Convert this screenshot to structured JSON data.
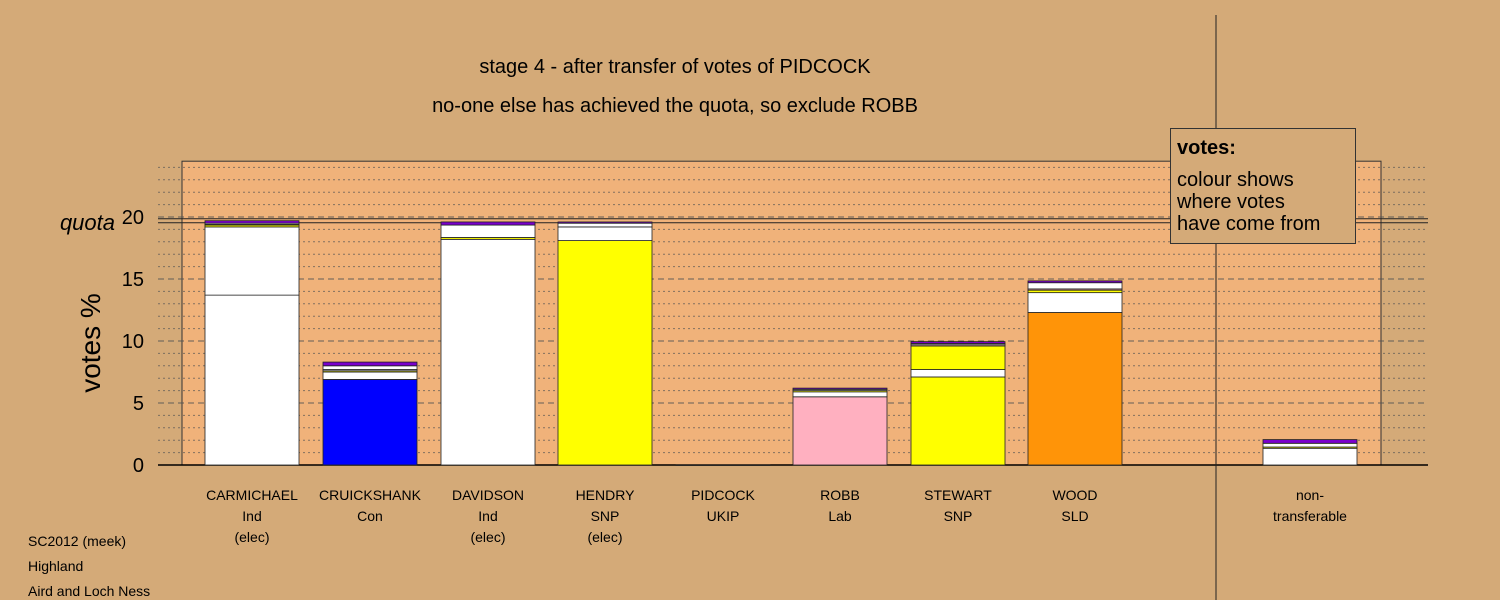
{
  "title_line1": "stage 4 - after transfer of votes of PIDCOCK",
  "title_line2": "no-one else has achieved the quota, so exclude ROBB",
  "legend": {
    "title": "votes:",
    "line1": "colour shows",
    "line2": "where votes",
    "line3": "have come from"
  },
  "footer": [
    "SC2012 (meek)",
    "Highland",
    "Aird and Loch Ness"
  ],
  "colors": {
    "background": "#d4aa78",
    "plot_area": "#f0b27a",
    "Ind": "#ffffff",
    "Con": "#0000ff",
    "SNP": "#ffff00",
    "Lab": "#ffb0c0",
    "SLD": "#ff9408",
    "UKIP": "#7a00cc"
  },
  "chart_data": {
    "type": "bar",
    "stacked": true,
    "ylabel": "votes %",
    "ylim": [
      0,
      24.5
    ],
    "yticks": [
      0,
      5,
      10,
      15,
      20
    ],
    "quota": {
      "label": "quota",
      "value": 19.7
    },
    "grid": "dashed at 5, dotted at 1",
    "categories": [
      {
        "name": "CARMICHAEL",
        "party": "Ind",
        "status": "(elec)"
      },
      {
        "name": "CRUICKSHANK",
        "party": "Con",
        "status": ""
      },
      {
        "name": "DAVIDSON",
        "party": "Ind",
        "status": "(elec)"
      },
      {
        "name": "HENDRY",
        "party": "SNP",
        "status": "(elec)"
      },
      {
        "name": "PIDCOCK",
        "party": "UKIP",
        "status": ""
      },
      {
        "name": "ROBB",
        "party": "Lab",
        "status": ""
      },
      {
        "name": "STEWART",
        "party": "SNP",
        "status": ""
      },
      {
        "name": "WOOD",
        "party": "SLD",
        "status": ""
      },
      {
        "name": "non-",
        "party": "transferable",
        "status": ""
      }
    ],
    "stacks": [
      [
        {
          "value": 13.7,
          "color": "#ffffff"
        },
        {
          "value": 5.5,
          "color": "#ffffff"
        },
        {
          "value": 0.15,
          "color": "#ffff00"
        },
        {
          "value": 0.05,
          "color": "#ffb0c0"
        },
        {
          "value": 0.1,
          "color": "#ffffff"
        },
        {
          "value": 0.2,
          "color": "#7a00cc"
        }
      ],
      [
        {
          "value": 6.9,
          "color": "#0000ff"
        },
        {
          "value": 0.6,
          "color": "#ffffff"
        },
        {
          "value": 0.1,
          "color": "#ffff00"
        },
        {
          "value": 0.1,
          "color": "#ffffff"
        },
        {
          "value": 0.3,
          "color": "#ffffff"
        },
        {
          "value": 0.3,
          "color": "#7a00cc"
        }
      ],
      [
        {
          "value": 18.2,
          "color": "#ffffff"
        },
        {
          "value": 0.15,
          "color": "#ffff00"
        },
        {
          "value": 1.0,
          "color": "#ffffff"
        },
        {
          "value": 0.25,
          "color": "#7a00cc"
        }
      ],
      [
        {
          "value": 18.1,
          "color": "#ffff00"
        },
        {
          "value": 1.1,
          "color": "#ffffff"
        },
        {
          "value": 0.3,
          "color": "#ffffff"
        },
        {
          "value": 0.1,
          "color": "#7a00cc"
        }
      ],
      [
        {
          "value": 0.0,
          "color": "#7a00cc"
        }
      ],
      [
        {
          "value": 5.5,
          "color": "#ffb0c0"
        },
        {
          "value": 0.4,
          "color": "#ffffff"
        },
        {
          "value": 0.1,
          "color": "#ffff00"
        },
        {
          "value": 0.1,
          "color": "#ffffff"
        },
        {
          "value": 0.1,
          "color": "#7a00cc"
        }
      ],
      [
        {
          "value": 7.1,
          "color": "#ffff00"
        },
        {
          "value": 0.6,
          "color": "#ffffff"
        },
        {
          "value": 1.9,
          "color": "#ffff00"
        },
        {
          "value": 0.1,
          "color": "#ffb0c0"
        },
        {
          "value": 0.1,
          "color": "#ffffff"
        },
        {
          "value": 0.15,
          "color": "#7a00cc"
        }
      ],
      [
        {
          "value": 12.3,
          "color": "#ff9408"
        },
        {
          "value": 1.6,
          "color": "#ffffff"
        },
        {
          "value": 0.2,
          "color": "#ffff00"
        },
        {
          "value": 0.1,
          "color": "#ffb0c0"
        },
        {
          "value": 0.5,
          "color": "#ffffff"
        },
        {
          "value": 0.15,
          "color": "#7a00cc"
        }
      ],
      [
        {
          "value": 1.35,
          "color": "#ffffff"
        },
        {
          "value": 0.1,
          "color": "#ffff00"
        },
        {
          "value": 0.3,
          "color": "#ffffff"
        },
        {
          "value": 0.3,
          "color": "#7a00cc"
        }
      ]
    ]
  }
}
